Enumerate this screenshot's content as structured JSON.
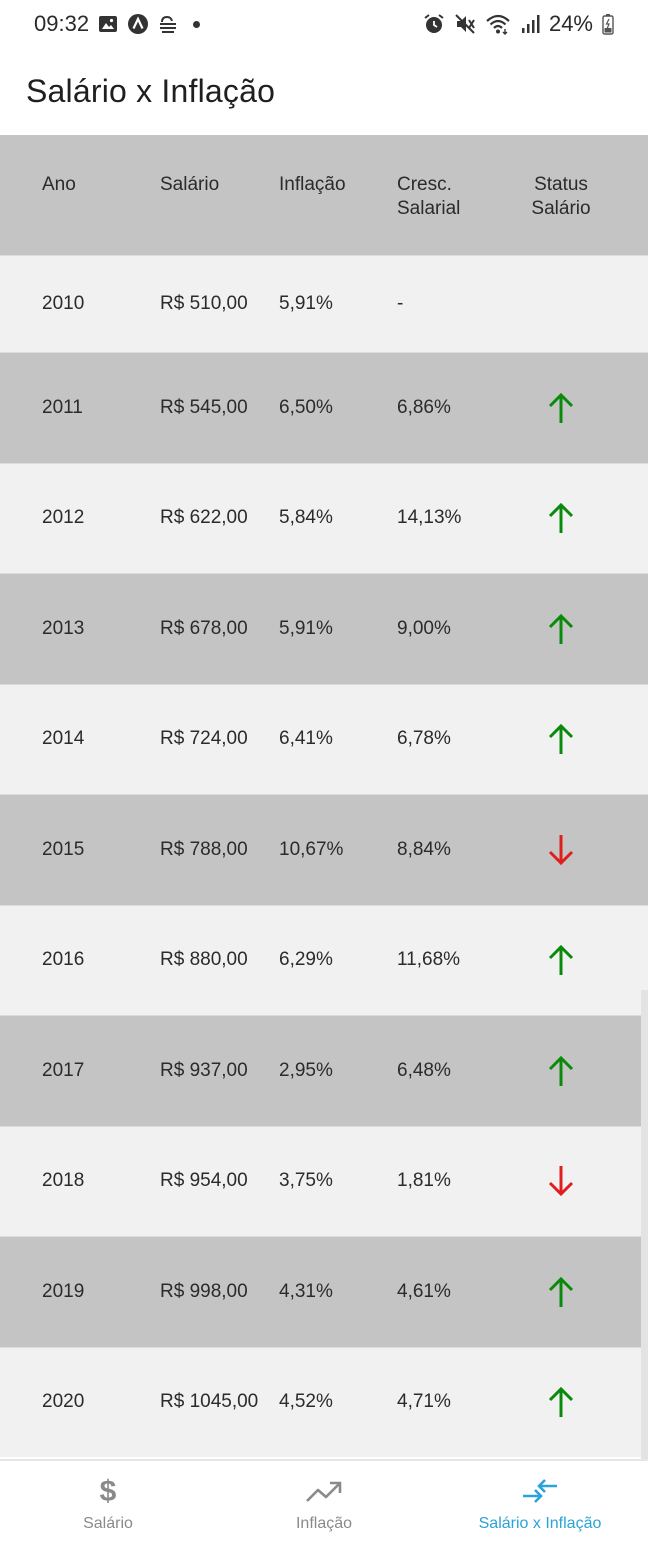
{
  "status_bar": {
    "time": "09:32",
    "battery": "24%",
    "left_icons": [
      "image-icon",
      "app-a-icon",
      "weather-icon",
      "dot-icon"
    ],
    "right_icons": [
      "alarm-icon",
      "mute-icon",
      "wifi-icon",
      "signal-icon",
      "battery-icon"
    ]
  },
  "app_bar": {
    "title": "Salário x Inflação"
  },
  "table": {
    "headers": {
      "ano": "Ano",
      "salario": "Salário",
      "inflacao": "Inflação",
      "cresc_line1": "Cresc.",
      "cresc_line2": "Salarial",
      "status_line1": "Status",
      "status_line2": "Salário"
    },
    "rows": [
      {
        "ano": "2010",
        "salario": "R$ 510,00",
        "inflacao": "5,91%",
        "cresc": "-",
        "status": "none"
      },
      {
        "ano": "2011",
        "salario": "R$ 545,00",
        "inflacao": "6,50%",
        "cresc": "6,86%",
        "status": "up"
      },
      {
        "ano": "2012",
        "salario": "R$ 622,00",
        "inflacao": "5,84%",
        "cresc": "14,13%",
        "status": "up"
      },
      {
        "ano": "2013",
        "salario": "R$ 678,00",
        "inflacao": "5,91%",
        "cresc": "9,00%",
        "status": "up"
      },
      {
        "ano": "2014",
        "salario": "R$ 724,00",
        "inflacao": "6,41%",
        "cresc": "6,78%",
        "status": "up"
      },
      {
        "ano": "2015",
        "salario": "R$ 788,00",
        "inflacao": "10,67%",
        "cresc": "8,84%",
        "status": "down"
      },
      {
        "ano": "2016",
        "salario": "R$ 880,00",
        "inflacao": "6,29%",
        "cresc": "11,68%",
        "status": "up"
      },
      {
        "ano": "2017",
        "salario": "R$ 937,00",
        "inflacao": "2,95%",
        "cresc": "6,48%",
        "status": "up"
      },
      {
        "ano": "2018",
        "salario": "R$ 954,00",
        "inflacao": "3,75%",
        "cresc": "1,81%",
        "status": "down"
      },
      {
        "ano": "2019",
        "salario": "R$ 998,00",
        "inflacao": "4,31%",
        "cresc": "4,61%",
        "status": "up"
      },
      {
        "ano": "2020",
        "salario": "R$ 1045,00",
        "inflacao": "4,52%",
        "cresc": "4,71%",
        "status": "up"
      }
    ]
  },
  "colors": {
    "up_arrow": "#0a8a0a",
    "down_arrow": "#e01e1e",
    "active_nav": "#2aa3d8",
    "inactive_nav": "#8a8a8a",
    "row_dark": "#c4c4c4",
    "row_light": "#f1f1f1"
  },
  "bottom_nav": {
    "items": [
      {
        "label": "Salário",
        "icon": "dollar-icon",
        "active": false
      },
      {
        "label": "Inflação",
        "icon": "trending-up-icon",
        "active": false
      },
      {
        "label": "Salário x Inflação",
        "icon": "compare-arrows-icon",
        "active": true
      }
    ]
  }
}
